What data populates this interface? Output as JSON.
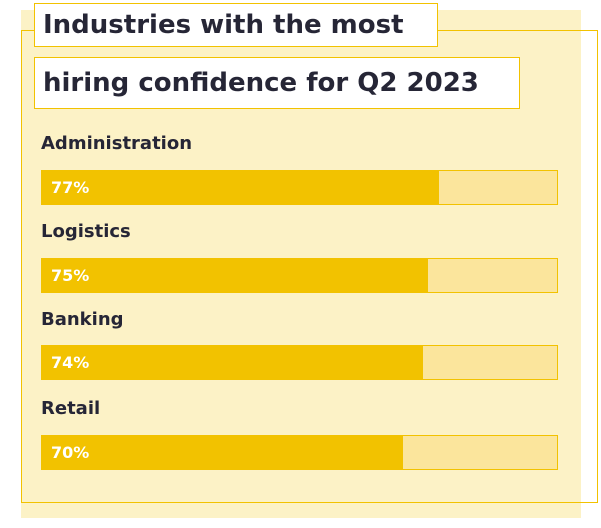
{
  "title": {
    "line1": "Industries with the most",
    "line2": "hiring confidence for Q2 2023"
  },
  "chart_data": {
    "type": "bar",
    "orientation": "horizontal",
    "title": "Industries with the most hiring confidence for Q2 2023",
    "categories": [
      "Administration",
      "Logistics",
      "Banking",
      "Retail"
    ],
    "values": [
      77,
      75,
      74,
      70
    ],
    "value_labels": [
      "77%",
      "75%",
      "74%",
      "70%"
    ],
    "unit": "%",
    "xlim": [
      0,
      100
    ],
    "grid": false,
    "legend": "none",
    "colors": {
      "bar": "#f2c200",
      "track": "#fbe59c",
      "panel": "#fcf2c6",
      "text": "#262636",
      "value_text": "#ffffff"
    }
  }
}
